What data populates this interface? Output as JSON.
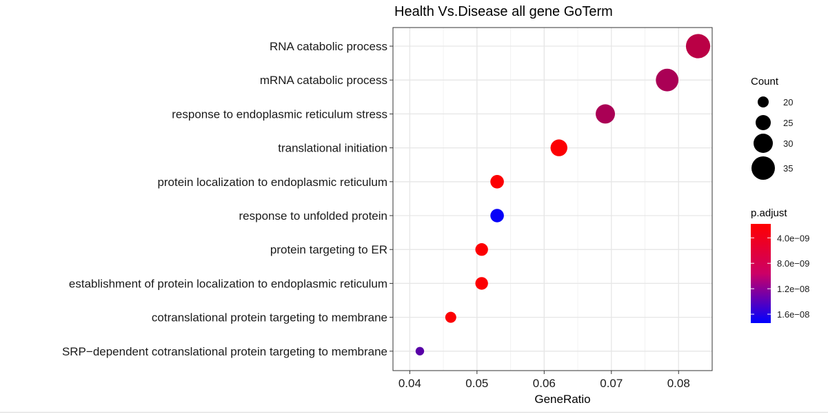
{
  "chart_data": {
    "type": "scatter",
    "title": "Health Vs.Disease all gene GoTerm",
    "xlabel": "GeneRatio",
    "ylabel": "",
    "xlim": [
      0.0375,
      0.085
    ],
    "xticks": [
      0.04,
      0.05,
      0.06,
      0.07,
      0.08
    ],
    "xtick_labels": [
      "0.04",
      "0.05",
      "0.06",
      "0.07",
      "0.08"
    ],
    "grid": true,
    "categories": [
      "SRP−dependent cotranslational protein targeting to membrane",
      "cotranslational protein targeting to membrane",
      "establishment of protein localization to endoplasmic reticulum",
      "protein targeting to ER",
      "response to unfolded protein",
      "protein localization to endoplasmic reticulum",
      "translational initiation",
      "response to endoplasmic reticulum stress",
      "mRNA catabolic process",
      "RNA catabolic process"
    ],
    "points": [
      {
        "term": "SRP−dependent cotranslational protein targeting to membrane",
        "x": 0.0415,
        "count": 17,
        "p_adjust": 1.2e-08
      },
      {
        "term": "cotranslational protein targeting to membrane",
        "x": 0.0461,
        "count": 20,
        "p_adjust": 2e-09
      },
      {
        "term": "establishment of protein localization to endoplasmic reticulum",
        "x": 0.0507,
        "count": 22,
        "p_adjust": 2e-09
      },
      {
        "term": "protein targeting to ER",
        "x": 0.0507,
        "count": 22,
        "p_adjust": 2e-09
      },
      {
        "term": "response to unfolded protein",
        "x": 0.053,
        "count": 23,
        "p_adjust": 1.7e-08
      },
      {
        "term": "protein localization to endoplasmic reticulum",
        "x": 0.053,
        "count": 23,
        "p_adjust": 2e-09
      },
      {
        "term": "translational initiation",
        "x": 0.0622,
        "count": 27,
        "p_adjust": 2e-09
      },
      {
        "term": "response to endoplasmic reticulum stress",
        "x": 0.0691,
        "count": 30,
        "p_adjust": 7e-09
      },
      {
        "term": "mRNA catabolic process",
        "x": 0.0783,
        "count": 34,
        "p_adjust": 7e-09
      },
      {
        "term": "RNA catabolic process",
        "x": 0.0829,
        "count": 36,
        "p_adjust": 6e-09
      }
    ],
    "legend": {
      "placement": "right",
      "size_title": "Count",
      "size_values": [
        20,
        25,
        30,
        35
      ],
      "size_labels": [
        "20",
        "25",
        "30",
        "35"
      ],
      "color_title": "p.adjust",
      "color_range": [
        1.8e-09,
        1.74e-08
      ],
      "color_ticks": [
        4e-09,
        8e-09,
        1.2e-08,
        1.6e-08
      ],
      "color_tick_labels": [
        "4.0e−09",
        "8.0e−09",
        "1.2e−08",
        "1.6e−08"
      ],
      "color_low": "#ff0000",
      "color_high": "#0000ff"
    }
  }
}
